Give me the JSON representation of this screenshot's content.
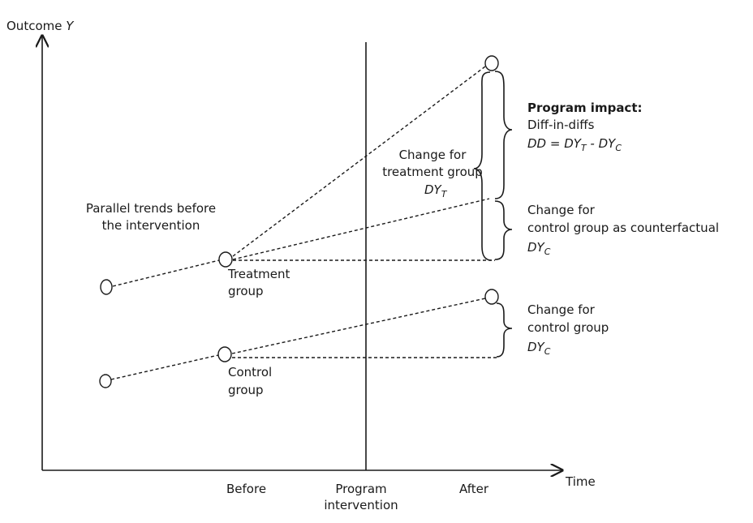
{
  "axes": {
    "y_label": "Outcome",
    "y_var": "Y",
    "x_label": "Time",
    "ticks": [
      "Before",
      "After"
    ],
    "intervention_line1": "Program",
    "intervention_line2": "intervention"
  },
  "labels": {
    "parallel_line1": "Parallel trends before",
    "parallel_line2": "the intervention",
    "treatment_line1": "Treatment",
    "treatment_line2": "group",
    "control_line1": "Control",
    "control_line2": "group"
  },
  "annotations": {
    "treat_change_line1": "Change for",
    "treat_change_line2": "treatment group",
    "treat_change_sym": "DY",
    "treat_change_sub": "T",
    "impact_title": "Program impact:",
    "impact_line2": "Diff-in-diffs",
    "dd_lhs": "DD = DY",
    "dd_sub1": "T",
    "dd_mid": " - DY",
    "dd_sub2": "C",
    "cf_line1": "Change for",
    "cf_line2": "control group as counterfactual",
    "cf_sym": "DY",
    "cf_sub": "C",
    "ctrl_line1": "Change for",
    "ctrl_line2": "control group",
    "ctrl_sym": "DY",
    "ctrl_sub": "C"
  }
}
